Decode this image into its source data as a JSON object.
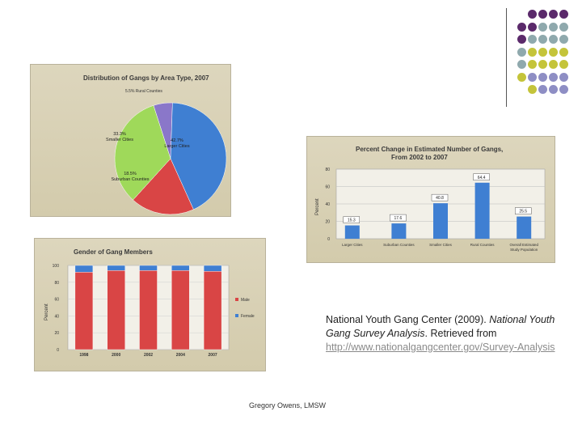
{
  "slide": {
    "footer": "Gregory Owens, LMSW",
    "citation": {
      "part1": "National Youth Gang Center (2009). ",
      "part2_italic": "National Youth Gang Survey Analysis",
      "part3": ". Retrieved from ",
      "link": "http://www.nationalgangcenter.gov/Survey-Analysis"
    }
  },
  "decor": {
    "dots": [
      [
        "#5b2a6b",
        "#5b2a6b",
        "#5b2a6b",
        "#5b2a6b"
      ],
      [
        "#5b2a6b",
        "#5b2a6b",
        "#8fa9ad",
        "#8fa9ad",
        "#8fa9ad"
      ],
      [
        "#5b2a6b",
        "#8fa9ad",
        "#8fa9ad",
        "#8fa9ad",
        "#8fa9ad"
      ],
      [
        "#8fa9ad",
        "#c4c43a",
        "#c4c43a",
        "#c4c43a",
        "#c4c43a"
      ],
      [
        "#8fa9ad",
        "#c4c43a",
        "#c4c43a",
        "#c4c43a",
        "#c4c43a"
      ],
      [
        "#c4c43a",
        "#8e8ec4",
        "#8e8ec4",
        "#8e8ec4",
        "#8e8ec4"
      ],
      [
        "#c4c43a",
        "#8e8ec4",
        "#8e8ec4",
        "#8e8ec4"
      ]
    ]
  },
  "chart_data": [
    {
      "type": "pie",
      "title": "Distribution of Gangs by Area Type, 2007",
      "slices": [
        {
          "label": "Rural Counties",
          "value": 5.5,
          "display": "5.5%",
          "color": "#8a77c9"
        },
        {
          "label": "Larger Cities",
          "value": 42.7,
          "display": "42.7%",
          "color": "#3f7fd2"
        },
        {
          "label": "Suburban Counties",
          "value": 18.5,
          "display": "18.5%",
          "color": "#d94545"
        },
        {
          "label": "Smaller Cities",
          "value": 33.3,
          "display": "33.3%",
          "color": "#9fd95a"
        }
      ]
    },
    {
      "type": "bar",
      "title": "Percent Change in Estimated Number of Gangs,",
      "subtitle": "From 2002 to 2007",
      "ylabel": "Percent",
      "ylim": [
        0,
        80
      ],
      "yticks": [
        0,
        20,
        40,
        60,
        80
      ],
      "categories": [
        "Larger Cities",
        "Suburban Counties",
        "Smaller Cities",
        "Rural Counties",
        "Overall Estimated Study Population"
      ],
      "values": [
        15.3,
        17.6,
        40.8,
        64.4,
        25.5
      ],
      "value_labels": [
        "15.3",
        "17.6",
        "40.8",
        "64.4",
        "25.5"
      ],
      "color": "#3f7fd2"
    },
    {
      "type": "bar",
      "title": "Gender of Gang Members",
      "ylabel": "Percent",
      "ylim": [
        0,
        100
      ],
      "yticks": [
        0,
        20,
        40,
        60,
        80,
        100
      ],
      "ytick_labels": [
        "0",
        "20",
        "40",
        "60",
        "80",
        "100"
      ],
      "categories": [
        "1998",
        "2000",
        "2002",
        "2004",
        "2007"
      ],
      "series": [
        {
          "name": "Male",
          "values": [
            92,
            94,
            94,
            94,
            93
          ],
          "color": "#d94545"
        },
        {
          "name": "Female",
          "values": [
            8,
            6,
            6,
            6,
            7
          ],
          "color": "#3f7fd2"
        }
      ]
    }
  ]
}
